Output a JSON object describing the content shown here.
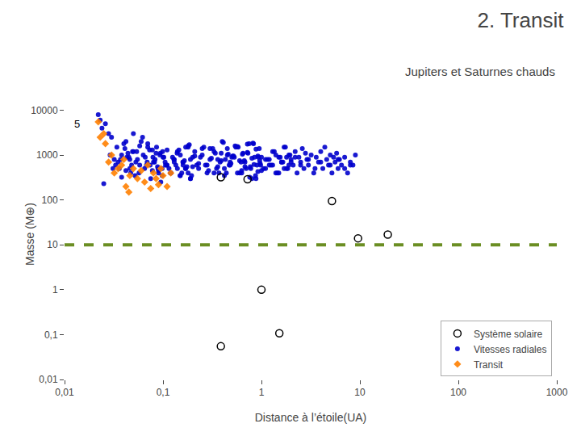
{
  "chart_data": {
    "type": "scatter",
    "title": "2. Transit",
    "subtitle": "Jupiters et Saturnes chauds",
    "xlabel": "Distance à l’étoile(UA)",
    "ylabel": "Masse (M⊕)",
    "log": true,
    "grid": false,
    "legend": "lower right",
    "xlim": [
      0.01,
      1000
    ],
    "ylim": [
      0.01,
      30000
    ],
    "xticks": [
      {
        "value": 0.01,
        "label": "0,01"
      },
      {
        "value": 0.1,
        "label": "0,1"
      },
      1,
      10,
      100,
      1000
    ],
    "yticks": [
      {
        "value": 0.01,
        "label": "0,01"
      },
      {
        "value": 0.1,
        "label": "0,1"
      },
      1,
      10,
      100,
      1000,
      10000
    ],
    "reference_line": {
      "value": 10,
      "color": "#6B8E23",
      "line_style": "dashed"
    },
    "annotations": [
      {
        "text": "5",
        "x": 0.012,
        "y": 5000
      }
    ],
    "series": [
      {
        "name": "Système solaire",
        "color": "#000000",
        "marker": "circle-open",
        "x": [
          0.387,
          0.723,
          5.2,
          9.58,
          19.2,
          0.387,
          1.0,
          1.52
        ],
        "values": [
          320,
          290,
          95,
          14,
          17,
          0.055,
          1.0,
          0.107
        ]
      },
      {
        "name": "Vitesses radiales",
        "color": "#0000CC",
        "marker": "circle",
        "x": [
          0.023,
          0.025,
          0.031,
          0.035,
          0.038,
          0.04,
          0.042,
          0.045,
          0.048,
          0.05,
          0.052,
          0.055,
          0.06,
          0.065,
          0.07,
          0.075,
          0.08,
          0.085,
          0.09,
          0.095,
          0.1,
          0.11,
          0.12,
          0.13,
          0.14,
          0.15,
          0.16,
          0.17,
          0.18,
          0.19,
          0.2,
          0.22,
          0.25,
          0.28,
          0.3,
          0.33,
          0.35,
          0.38,
          0.4,
          0.42,
          0.45,
          0.48,
          0.5,
          0.55,
          0.6,
          0.62,
          0.65,
          0.7,
          0.75,
          0.8,
          0.85,
          0.9,
          0.95,
          1.0,
          1.1,
          1.2,
          1.3,
          1.4,
          1.5,
          1.6,
          1.7,
          1.8,
          1.9,
          2.0,
          2.1,
          2.2,
          2.3,
          2.4,
          2.5,
          2.6,
          2.7,
          2.8,
          2.9,
          3.0,
          3.2,
          3.4,
          3.6,
          3.8,
          4.0,
          4.2,
          4.4,
          4.6,
          4.8,
          5.0,
          5.2,
          5.4,
          5.6,
          5.8,
          6.0,
          6.2,
          6.5,
          7.0,
          7.5,
          8.0,
          8.5,
          9.0,
          0.024,
          0.029,
          0.033,
          0.037,
          0.041,
          0.043,
          0.046,
          0.049,
          0.053,
          0.057,
          0.063,
          0.068,
          0.073,
          0.078,
          0.083,
          0.088,
          0.093,
          0.098,
          0.105,
          0.115,
          0.125,
          0.135,
          0.145,
          0.155,
          0.165,
          0.175,
          0.185,
          0.195,
          0.21,
          0.23,
          0.26,
          0.29,
          0.31,
          0.34,
          0.36,
          0.39,
          0.41,
          0.44,
          0.46,
          0.49,
          0.52,
          0.57,
          0.63,
          0.67,
          0.72,
          0.77,
          0.82,
          0.87,
          0.92,
          0.97,
          0.028,
          0.032,
          0.036,
          0.044,
          0.047,
          0.058,
          0.069,
          0.079,
          0.089,
          0.099,
          0.109,
          0.119,
          0.129,
          0.139,
          0.149,
          0.159,
          0.169,
          0.18,
          0.19,
          0.24,
          0.27,
          0.32,
          0.37,
          0.43,
          0.47,
          0.53,
          0.58,
          0.63,
          0.68,
          0.73,
          0.78,
          0.83,
          0.88,
          0.93,
          0.98,
          1.05,
          1.15,
          1.25,
          1.35,
          1.45,
          1.55,
          1.65,
          1.75,
          1.85,
          1.95,
          0.022,
          0.026,
          0.03,
          0.034,
          0.038,
          0.042,
          0.046,
          0.05,
          0.054,
          0.058,
          0.062,
          0.066,
          0.07,
          0.074,
          0.078,
          0.082,
          0.086,
          0.09,
          0.094,
          0.098,
          0.102,
          0.106,
          0.11,
          0.12,
          0.13,
          0.14,
          0.15,
          0.16,
          0.17,
          0.18,
          0.19,
          0.2,
          0.21,
          0.23,
          0.25,
          0.28,
          0.3,
          0.33,
          0.36,
          0.39,
          0.42,
          0.45,
          0.48,
          0.51,
          0.54,
          0.57,
          0.6,
          0.64,
          0.68,
          0.72,
          0.76,
          0.8,
          0.84,
          0.88,
          0.92,
          0.96,
          1.0,
          1.1,
          1.2,
          1.3,
          1.4,
          1.5,
          1.6,
          1.7,
          1.8,
          1.9,
          2.0,
          2.2,
          2.5,
          3.0,
          3.5,
          4.0,
          5.0,
          6.0,
          7.0,
          8.0
        ],
        "values": [
          6000,
          230,
          500,
          700,
          320,
          1800,
          450,
          900,
          600,
          1200,
          350,
          800,
          2000,
          500,
          1500,
          300,
          700,
          1100,
          450,
          250,
          900,
          600,
          400,
          800,
          1200,
          350,
          700,
          500,
          1600,
          300,
          900,
          600,
          1400,
          400,
          800,
          1200,
          500,
          700,
          2000,
          350,
          1000,
          600,
          900,
          1500,
          400,
          700,
          1100,
          500,
          1800,
          300,
          900,
          600,
          1400,
          450,
          800,
          600,
          1200,
          400,
          900,
          700,
          1500,
          500,
          1000,
          800,
          600,
          1200,
          400,
          900,
          700,
          1400,
          500,
          1100,
          800,
          600,
          1000,
          400,
          900,
          700,
          1200,
          500,
          1500,
          800,
          600,
          1000,
          400,
          900,
          700,
          1100,
          500,
          800,
          600,
          900,
          400,
          700,
          600,
          1000,
          4000,
          1000,
          600,
          800,
          1400,
          900,
          500,
          1200,
          700,
          400,
          1000,
          600,
          1300,
          450,
          800,
          550,
          1000,
          350,
          700,
          500,
          900,
          600,
          1300,
          400,
          750,
          550,
          1700,
          350,
          950,
          650,
          1500,
          450,
          850,
          1100,
          550,
          750,
          1900,
          400,
          1050,
          650,
          950,
          1550,
          450,
          750,
          1150,
          550,
          1850,
          350,
          950,
          650,
          3000,
          800,
          500,
          1100,
          400,
          1600,
          700,
          900,
          500,
          1200,
          600,
          400,
          800,
          1100,
          350,
          700,
          500,
          1500,
          300,
          900,
          600,
          1400,
          400,
          800,
          600,
          900,
          1500,
          400,
          700,
          1100,
          500,
          1800,
          300,
          900,
          600,
          500,
          800,
          600,
          1200,
          400,
          900,
          700,
          1500,
          500,
          1000,
          8000,
          5000,
          2500,
          1500,
          1000,
          2000,
          800,
          3000,
          1200,
          600,
          2500,
          900,
          1800,
          600,
          1300,
          700,
          1500,
          400,
          1100,
          500,
          900,
          600,
          1300,
          400,
          700,
          500,
          1000,
          600,
          1500,
          400,
          800,
          550,
          1200,
          500,
          1000,
          600,
          1400,
          400,
          800,
          1100,
          500,
          1400,
          700,
          950,
          1600,
          400,
          750,
          1050,
          550,
          1750,
          320,
          850,
          620,
          1350,
          430,
          750,
          900,
          500,
          800,
          600,
          1000,
          400,
          700,
          500,
          900,
          600,
          700,
          900,
          600,
          800,
          500,
          700,
          600,
          800,
          500,
          600
        ]
      },
      {
        "name": "Transit",
        "color": "#FF8000",
        "marker": "diamond",
        "x": [
          0.023,
          0.028,
          0.032,
          0.038,
          0.042,
          0.046,
          0.05,
          0.055,
          0.06,
          0.065,
          0.07,
          0.075,
          0.08,
          0.085,
          0.09,
          0.095,
          0.1,
          0.11,
          0.12,
          0.025,
          0.03,
          0.035,
          0.04,
          0.045,
          0.022,
          0.026
        ],
        "values": [
          2500,
          700,
          400,
          600,
          200,
          350,
          500,
          300,
          450,
          250,
          600,
          180,
          400,
          300,
          220,
          500,
          350,
          200,
          400,
          3000,
          1000,
          500,
          800,
          150,
          5500,
          1800
        ]
      }
    ]
  }
}
